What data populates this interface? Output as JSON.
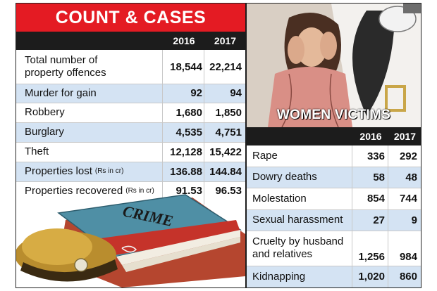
{
  "left_table": {
    "title": "COUNT & CASES",
    "years": [
      "2016",
      "2017"
    ],
    "rows": [
      {
        "label_line1": "Total number of",
        "label_line2": "property offences",
        "v2016": "18,544",
        "v2017": "22,214"
      },
      {
        "label": "Murder for gain",
        "v2016": "92",
        "v2017": "94"
      },
      {
        "label": "Robbery",
        "v2016": "1,680",
        "v2017": "1,850"
      },
      {
        "label": "Burglary",
        "v2016": "4,535",
        "v2017": "4,751"
      },
      {
        "label": "Theft",
        "v2016": "12,128",
        "v2017": "15,422"
      },
      {
        "label": "Properties lost",
        "note": "(Rs in cr)",
        "v2016": "136.88",
        "v2017": "144.84"
      },
      {
        "label": "Properties recovered",
        "note": "(Rs in cr)",
        "v2016": "91.53",
        "v2017": "96.53"
      }
    ],
    "illustration_text": "CRIME"
  },
  "right_table": {
    "title": "WOMEN VICTIMS",
    "years": [
      "2016",
      "2017"
    ],
    "rows": [
      {
        "label": "Rape",
        "v2016": "336",
        "v2017": "292"
      },
      {
        "label": "Dowry deaths",
        "v2016": "58",
        "v2017": "48"
      },
      {
        "label": "Molestation",
        "v2016": "854",
        "v2017": "744"
      },
      {
        "label": "Sexual harassment",
        "v2016": "27",
        "v2017": "9"
      },
      {
        "label_line1": "Cruelty by husband",
        "label_line2": "and relatives",
        "v2016": "1,256",
        "v2017": "984"
      },
      {
        "label": "Kidnapping",
        "v2016": "1,020",
        "v2017": "860"
      }
    ]
  },
  "colors": {
    "title_red": "#e41b23",
    "header_dark": "#1c1c1c",
    "row_alt_blue": "#d4e3f3"
  }
}
